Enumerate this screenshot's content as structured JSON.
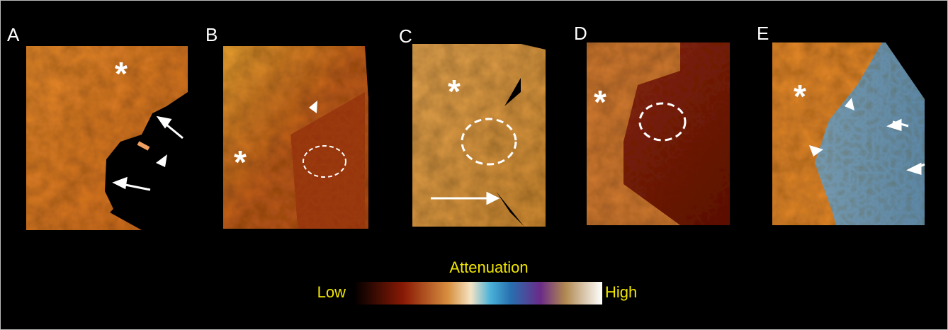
{
  "panels": [
    {
      "label": "A",
      "marker": "*"
    },
    {
      "label": "B",
      "marker": "*"
    },
    {
      "label": "C",
      "marker": "*"
    },
    {
      "label": "D",
      "marker": "*"
    },
    {
      "label": "E",
      "marker": "*"
    }
  ],
  "colorbar": {
    "title": "Attenuation",
    "low": "Low",
    "high": "High"
  }
}
